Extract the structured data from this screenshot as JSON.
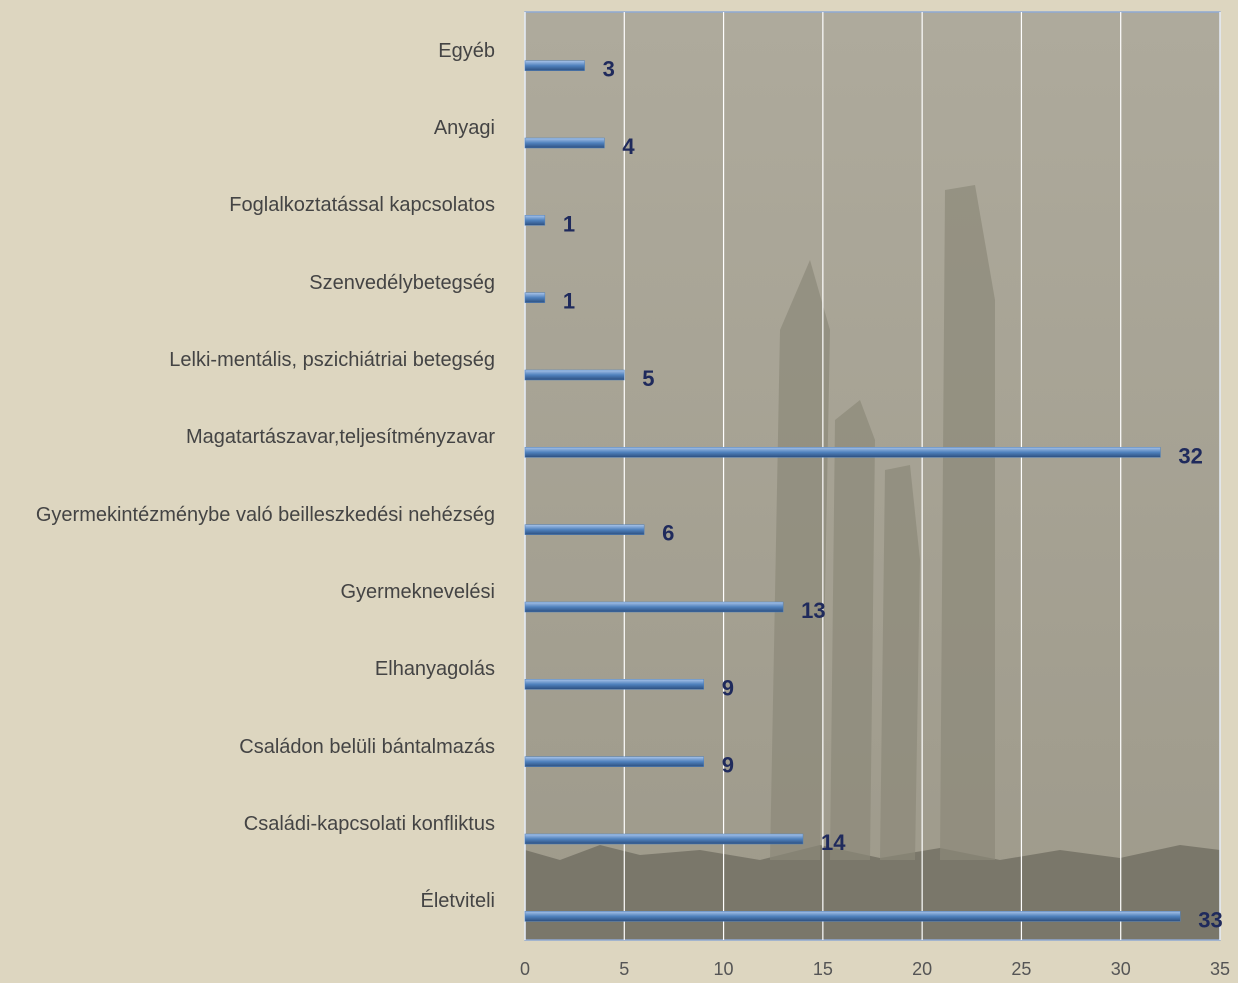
{
  "chart_data": {
    "type": "bar",
    "orientation": "horizontal",
    "categories": [
      "Egyéb",
      "Anyagi",
      "Foglalkoztatással kapcsolatos",
      "Szenvedélybetegség",
      "Lelki-mentális, pszichiátriai betegség",
      "Magatartászavar,teljesítményzavar",
      "Gyermekintézménybe való beilleszkedési nehézség",
      "Gyermeknevelési",
      "Elhanyagolás",
      "Családon belüli bántalmazás",
      "Családi-kapcsolati konfliktus",
      "Életviteli"
    ],
    "values": [
      3,
      4,
      1,
      1,
      5,
      32,
      6,
      13,
      9,
      9,
      14,
      33
    ],
    "color": "#4f81bd",
    "xlim": [
      0,
      35
    ],
    "xticks": [
      0,
      5,
      10,
      15,
      20,
      25,
      30,
      35
    ],
    "grid": true
  }
}
